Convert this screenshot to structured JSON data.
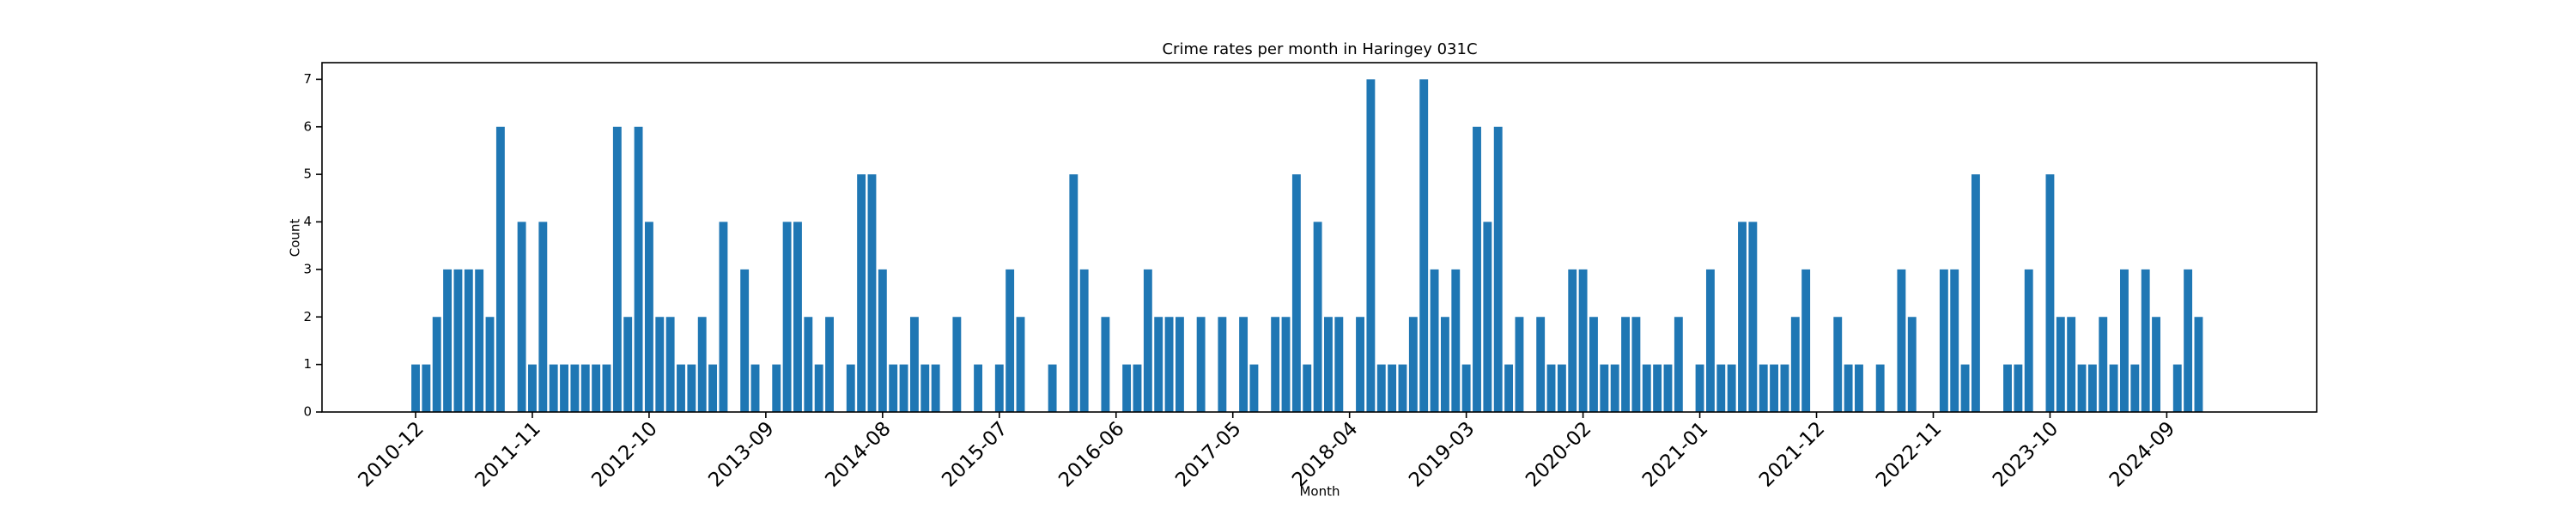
{
  "chart_data": {
    "type": "bar",
    "title": "Crime rates per month in Haringey 031C",
    "x_label": "Month",
    "y_label": "Count",
    "color": "#1f77b4",
    "grid": false,
    "ylim": [
      0,
      7.35
    ],
    "yticks": [
      0,
      1,
      2,
      3,
      4,
      5,
      6,
      7
    ],
    "categories": [
      "2010-12",
      null,
      null,
      null,
      null,
      null,
      null,
      null,
      null,
      null,
      null,
      "2011-11",
      null,
      null,
      null,
      null,
      null,
      null,
      null,
      null,
      null,
      null,
      "2012-10",
      null,
      null,
      null,
      null,
      null,
      null,
      null,
      null,
      null,
      null,
      "2013-09",
      null,
      null,
      null,
      null,
      null,
      null,
      null,
      null,
      null,
      null,
      "2014-08",
      null,
      null,
      null,
      null,
      null,
      null,
      null,
      null,
      null,
      null,
      "2015-07",
      null,
      null,
      null,
      null,
      null,
      null,
      null,
      null,
      null,
      null,
      "2016-06",
      null,
      null,
      null,
      null,
      null,
      null,
      null,
      null,
      null,
      null,
      "2017-05",
      null,
      null,
      null,
      null,
      null,
      null,
      null,
      null,
      null,
      null,
      "2018-04",
      null,
      null,
      null,
      null,
      null,
      null,
      null,
      null,
      null,
      null,
      "2019-03",
      null,
      null,
      null,
      null,
      null,
      null,
      null,
      null,
      null,
      null,
      "2020-02",
      null,
      null,
      null,
      null,
      null,
      null,
      null,
      null,
      null,
      null,
      "2021-01",
      null,
      null,
      null,
      null,
      null,
      null,
      null,
      null,
      null,
      null,
      "2021-12",
      null,
      null,
      null,
      null,
      null,
      null,
      null,
      null,
      null,
      null,
      "2022-11",
      null,
      null,
      null,
      null,
      null,
      null,
      null,
      null,
      null,
      null,
      "2023-10",
      null,
      null,
      null,
      null,
      null,
      null,
      null,
      null,
      null,
      null,
      "2024-09",
      null,
      null,
      null
    ],
    "values": [
      1,
      1,
      2,
      3,
      3,
      3,
      3,
      2,
      6,
      0,
      4,
      1,
      4,
      1,
      1,
      1,
      1,
      1,
      1,
      6,
      2,
      6,
      4,
      2,
      2,
      1,
      1,
      2,
      1,
      4,
      0,
      3,
      1,
      0,
      1,
      4,
      4,
      2,
      1,
      2,
      0,
      1,
      5,
      5,
      3,
      1,
      1,
      2,
      1,
      1,
      0,
      2,
      0,
      1,
      0,
      1,
      3,
      2,
      0,
      0,
      1,
      0,
      5,
      3,
      0,
      2,
      0,
      1,
      1,
      3,
      2,
      2,
      2,
      0,
      2,
      0,
      2,
      0,
      2,
      1,
      0,
      2,
      2,
      5,
      1,
      4,
      2,
      2,
      0,
      2,
      7,
      1,
      1,
      1,
      2,
      7,
      3,
      2,
      3,
      1,
      6,
      4,
      6,
      1,
      2,
      0,
      2,
      1,
      1,
      3,
      3,
      2,
      1,
      1,
      2,
      2,
      1,
      1,
      1,
      2,
      0,
      1,
      3,
      1,
      1,
      4,
      4,
      1,
      1,
      1,
      2,
      3,
      0,
      0,
      2,
      1,
      1,
      0,
      1,
      0,
      3,
      2,
      0,
      0,
      3,
      3,
      1,
      5,
      0,
      0,
      1,
      1,
      3,
      0,
      5,
      2,
      2,
      1,
      1,
      2,
      1,
      3,
      1,
      3,
      2,
      0,
      1,
      3,
      2
    ]
  }
}
